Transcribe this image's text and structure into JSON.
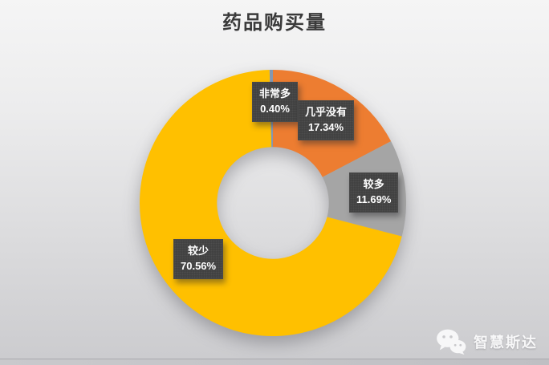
{
  "chart_data": {
    "type": "pie",
    "subtype": "donut",
    "title": "药品购买量",
    "start_angle_deg": 0,
    "direction": "clockwise",
    "inner_radius_ratio": 0.42,
    "legend_position": "none",
    "grid": false,
    "slices": [
      {
        "id": "almost-none",
        "label": "几乎没有",
        "value": 17.34,
        "display": "17.34%",
        "color": "#ED7D31"
      },
      {
        "id": "more",
        "label": "较多",
        "value": 11.69,
        "display": "11.69%",
        "color": "#A5A5A5"
      },
      {
        "id": "less",
        "label": "较少",
        "value": 70.56,
        "display": "70.56%",
        "color": "#FFC000"
      },
      {
        "id": "very-much",
        "label": "非常多",
        "value": 0.4,
        "display": "0.40%",
        "color": "#8497B0"
      }
    ]
  },
  "watermark": {
    "icon": "wechat-icon",
    "text": "智慧斯达"
  },
  "colors": {
    "label_box_bg": "#3F3F3F",
    "label_text": "#FFFFFF",
    "title_text": "#3A3A3A",
    "background_top": "#F5F5F5",
    "background_bottom": "#CBCBCE"
  }
}
